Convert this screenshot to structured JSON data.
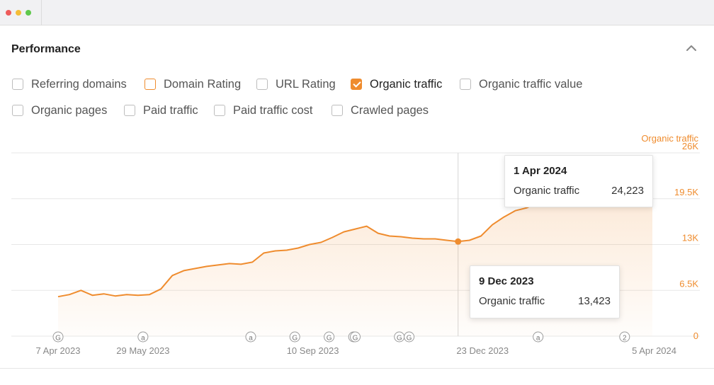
{
  "window": {
    "controls": [
      "close",
      "minimize",
      "maximize"
    ]
  },
  "panel": {
    "title": "Performance",
    "collapse_icon": "chevron-up-icon"
  },
  "colors": {
    "accent": "#ef8c2e",
    "close": "#ee5b5a",
    "minimize": "#f4bd38",
    "maximize": "#5fc84c"
  },
  "metrics": [
    {
      "label": "Referring domains",
      "checked": false
    },
    {
      "label": "Domain Rating",
      "checked": false
    },
    {
      "label": "URL Rating",
      "checked": false
    },
    {
      "label": "Organic traffic",
      "checked": true
    },
    {
      "label": "Organic traffic value",
      "checked": false
    },
    {
      "label": "Organic pages",
      "checked": false
    },
    {
      "label": "Paid traffic",
      "checked": false
    },
    {
      "label": "Paid traffic cost",
      "checked": false
    },
    {
      "label": "Crawled pages",
      "checked": false
    }
  ],
  "chart_data": {
    "type": "area",
    "series": [
      {
        "name": "Organic traffic",
        "color": "#ef8c2e",
        "x": [
          "2023-04-07",
          "2023-04-14",
          "2023-04-21",
          "2023-04-28",
          "2023-05-05",
          "2023-05-12",
          "2023-05-19",
          "2023-05-26",
          "2023-06-02",
          "2023-06-09",
          "2023-06-16",
          "2023-06-23",
          "2023-06-30",
          "2023-07-07",
          "2023-07-14",
          "2023-07-21",
          "2023-07-28",
          "2023-08-04",
          "2023-08-11",
          "2023-08-18",
          "2023-08-25",
          "2023-09-01",
          "2023-09-08",
          "2023-09-15",
          "2023-09-22",
          "2023-09-29",
          "2023-10-06",
          "2023-10-13",
          "2023-10-20",
          "2023-10-27",
          "2023-11-03",
          "2023-11-10",
          "2023-11-17",
          "2023-11-24",
          "2023-12-01",
          "2023-12-08",
          "2023-12-15",
          "2023-12-22",
          "2023-12-29",
          "2024-01-05",
          "2024-01-12",
          "2024-01-19",
          "2024-01-26",
          "2024-02-02",
          "2024-02-09",
          "2024-02-16",
          "2024-02-23",
          "2024-03-01",
          "2024-03-08",
          "2024-03-15",
          "2024-03-22",
          "2024-03-29",
          "2024-04-01"
        ],
        "values": [
          5600,
          5900,
          6500,
          5800,
          6000,
          5700,
          5900,
          5800,
          5900,
          6700,
          8600,
          9300,
          9600,
          9900,
          10100,
          10300,
          10200,
          10500,
          11800,
          12100,
          12200,
          12500,
          13000,
          13300,
          14000,
          14800,
          15200,
          15600,
          14600,
          14200,
          14100,
          13900,
          13800,
          13800,
          13600,
          13423,
          13600,
          14200,
          15800,
          16900,
          17800,
          18200,
          19000,
          19500,
          20200,
          21000,
          21700,
          22100,
          22600,
          23100,
          23600,
          24000,
          24223
        ]
      }
    ],
    "y_axis": {
      "label": "Organic traffic",
      "ticks": [
        "0",
        "6.5K",
        "13K",
        "19.5K",
        "26K"
      ],
      "range": [
        0,
        26000
      ],
      "position": "right"
    },
    "x_axis": {
      "ticks": [
        "7 Apr 2023",
        "29 May 2023",
        "10 Sep 2023",
        "23 Dec 2023",
        "5 Apr 2024"
      ],
      "range": [
        "2023-04-07",
        "2024-04-05"
      ]
    },
    "grid": true,
    "annotations": [
      {
        "date": "2023-04-07",
        "label": "G"
      },
      {
        "date": "2023-05-29",
        "label": "a"
      },
      {
        "date": "2023-08-03",
        "label": "a"
      },
      {
        "date": "2023-08-30",
        "label": "G"
      },
      {
        "date": "2023-09-20",
        "label": "G"
      },
      {
        "date": "2023-10-05",
        "label": "G"
      },
      {
        "date": "2023-10-06",
        "label": "G"
      },
      {
        "date": "2023-11-02",
        "label": "G"
      },
      {
        "date": "2023-11-08",
        "label": "G"
      },
      {
        "date": "2024-01-26",
        "label": "a"
      },
      {
        "date": "2024-03-19",
        "label": "2"
      }
    ],
    "tooltips": [
      {
        "date_label": "1 Apr 2024",
        "metric": "Organic traffic",
        "value": "24,223"
      },
      {
        "date_label": "9 Dec 2023",
        "metric": "Organic traffic",
        "value": "13,423"
      }
    ]
  }
}
